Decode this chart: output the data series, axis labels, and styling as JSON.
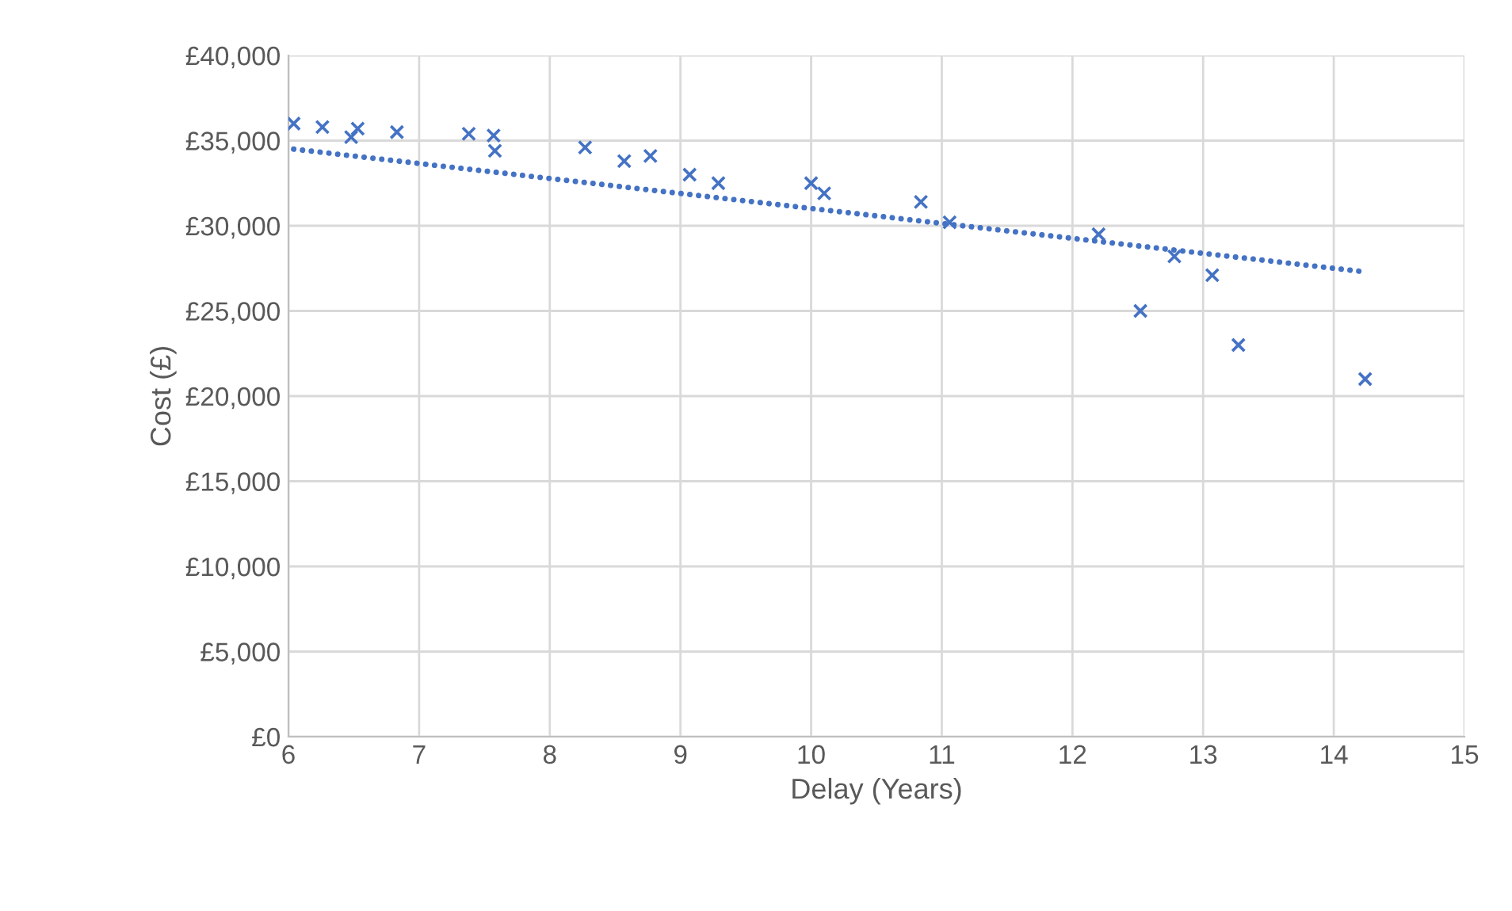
{
  "chart_data": {
    "type": "scatter",
    "xlabel": "Delay (Years)",
    "ylabel": "Cost (£)",
    "series": [
      {
        "color": "#4472c4",
        "marker": "cross",
        "x": [
          6.04,
          6.26,
          6.48,
          6.53,
          6.83,
          7.38,
          7.57,
          7.58,
          8.27,
          8.57,
          8.77,
          9.07,
          9.29,
          10.0,
          10.1,
          10.84,
          11.06,
          12.2,
          12.52,
          12.78,
          13.07,
          13.27,
          14.24
        ],
        "values": [
          36000,
          35800,
          35200,
          35700,
          35500,
          35400,
          35300,
          34400,
          34600,
          33800,
          34100,
          33000,
          32500,
          32500,
          31900,
          31400,
          30200,
          29500,
          25000,
          28200,
          27100,
          23000,
          21000
        ]
      },
      {
        "type": "line",
        "color": "#4472c4",
        "marker": "none",
        "line_style": "dotted",
        "x": [
          6.04,
          14.23
        ],
        "values": [
          34500,
          27300
        ]
      }
    ],
    "xlim": [
      6,
      15
    ],
    "xticks": [
      6,
      7,
      8,
      9,
      10,
      11,
      12,
      13,
      14,
      15
    ],
    "ylim": [
      0,
      40000
    ],
    "yticks": [
      {
        "value": 0,
        "label": "£0"
      },
      {
        "value": 5000,
        "label": "£5,000"
      },
      {
        "value": 10000,
        "label": "£10,000"
      },
      {
        "value": 15000,
        "label": "£15,000"
      },
      {
        "value": 20000,
        "label": "£20,000"
      },
      {
        "value": 25000,
        "label": "£25,000"
      },
      {
        "value": 30000,
        "label": "£30,000"
      },
      {
        "value": 35000,
        "label": "£35,000"
      },
      {
        "value": 40000,
        "label": "£40,000"
      }
    ],
    "grid": true
  }
}
